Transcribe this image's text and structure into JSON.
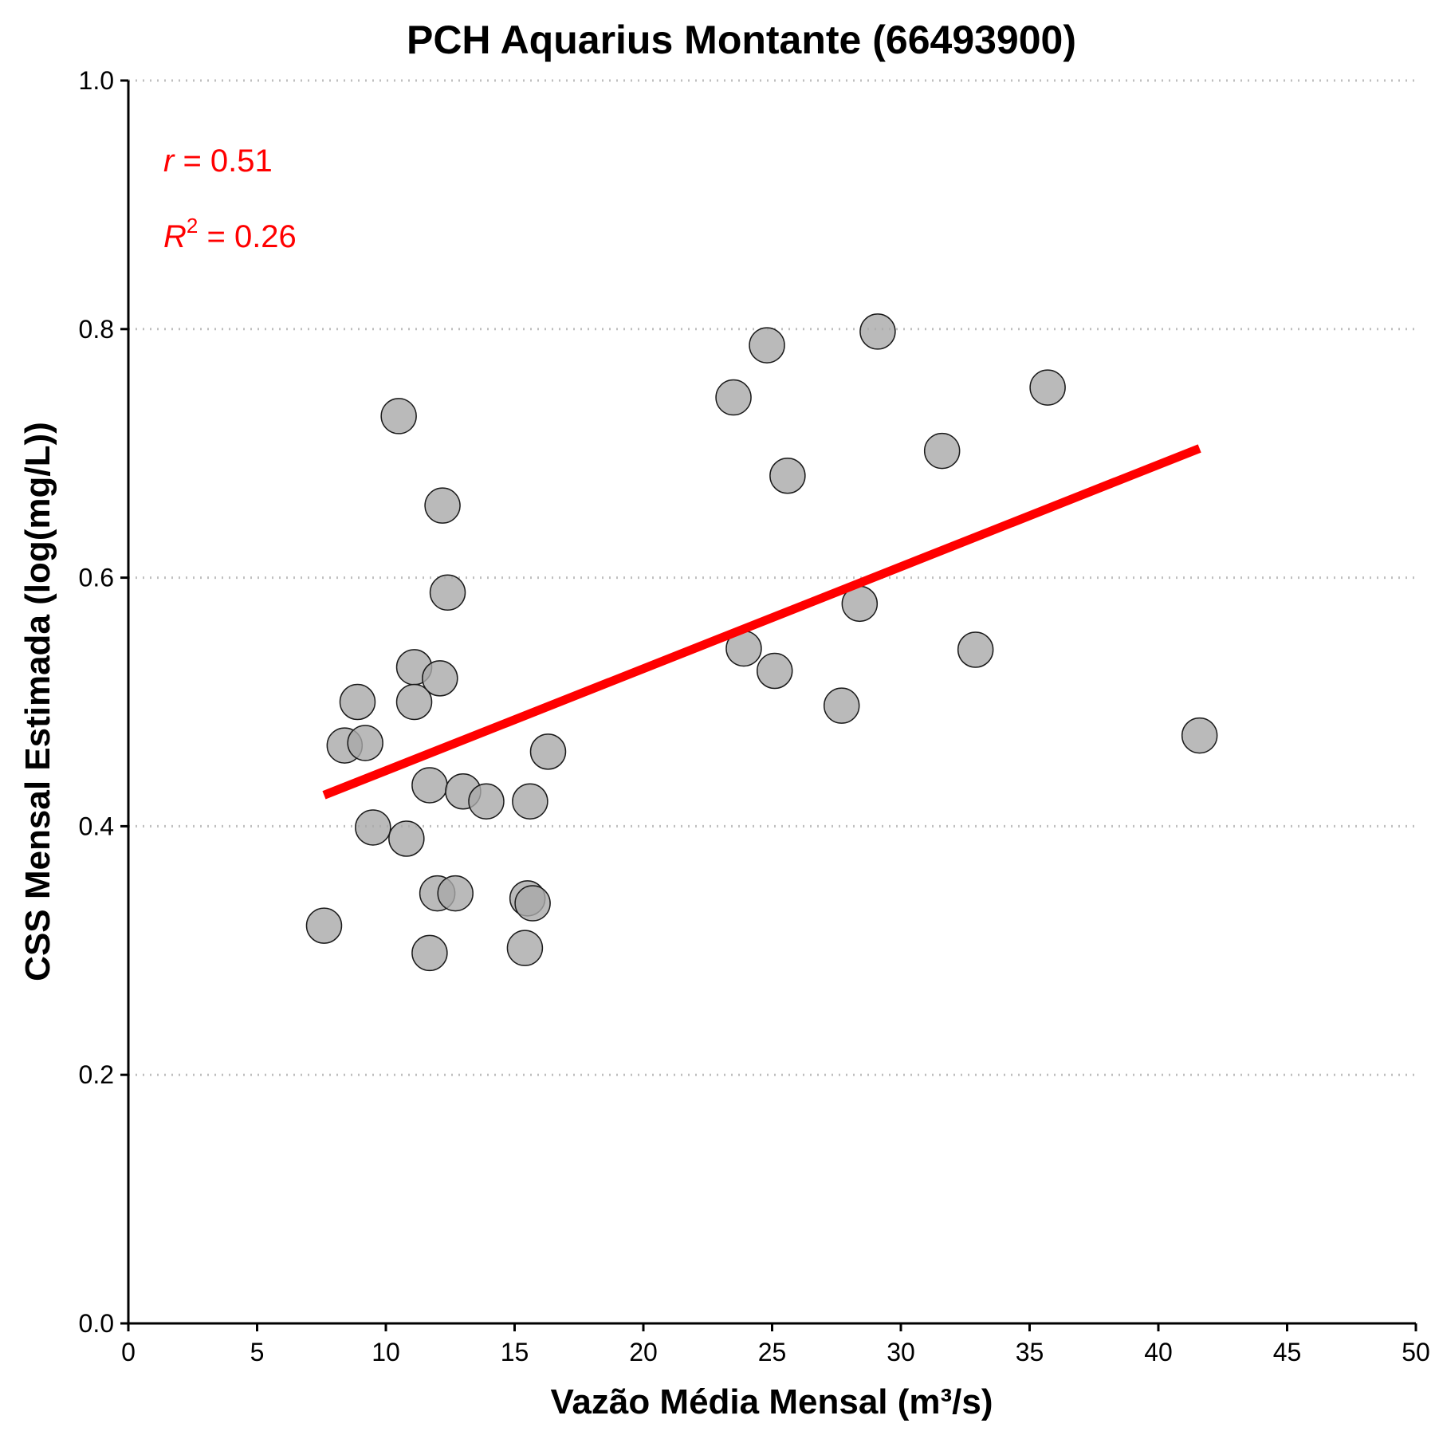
{
  "chart_data": {
    "type": "scatter",
    "title": "PCH Aquarius Montante (66493900)",
    "xlabel": "Vazão Média Mensal (m³/s)",
    "ylabel": "CSS Mensal Estimada (log(mg/L))",
    "xlim": [
      0,
      50
    ],
    "ylim": [
      0,
      1
    ],
    "x_ticks": [
      "0",
      "5",
      "10",
      "15",
      "20",
      "25",
      "30",
      "35",
      "40",
      "45",
      "50"
    ],
    "y_ticks": [
      "0.0",
      "0.2",
      "0.4",
      "0.6",
      "0.8",
      "1.0"
    ],
    "y_grid": "dotted horizontal at major ticks",
    "point_color": "#a9a9a9",
    "line_color": "#ff0000",
    "points": [
      {
        "x": 7.6,
        "y": 0.32
      },
      {
        "x": 8.4,
        "y": 0.465
      },
      {
        "x": 8.9,
        "y": 0.5
      },
      {
        "x": 9.2,
        "y": 0.467
      },
      {
        "x": 9.5,
        "y": 0.399
      },
      {
        "x": 10.5,
        "y": 0.73
      },
      {
        "x": 10.8,
        "y": 0.39
      },
      {
        "x": 11.1,
        "y": 0.528
      },
      {
        "x": 11.1,
        "y": 0.5
      },
      {
        "x": 11.7,
        "y": 0.433
      },
      {
        "x": 11.7,
        "y": 0.298
      },
      {
        "x": 12.0,
        "y": 0.346
      },
      {
        "x": 12.1,
        "y": 0.519
      },
      {
        "x": 12.2,
        "y": 0.658
      },
      {
        "x": 12.4,
        "y": 0.588
      },
      {
        "x": 12.7,
        "y": 0.346
      },
      {
        "x": 13.0,
        "y": 0.428
      },
      {
        "x": 13.9,
        "y": 0.42
      },
      {
        "x": 15.4,
        "y": 0.302
      },
      {
        "x": 15.5,
        "y": 0.342
      },
      {
        "x": 15.6,
        "y": 0.42
      },
      {
        "x": 15.7,
        "y": 0.338
      },
      {
        "x": 16.3,
        "y": 0.46
      },
      {
        "x": 23.5,
        "y": 0.745
      },
      {
        "x": 23.9,
        "y": 0.543
      },
      {
        "x": 24.8,
        "y": 0.787
      },
      {
        "x": 25.1,
        "y": 0.525
      },
      {
        "x": 25.6,
        "y": 0.682
      },
      {
        "x": 27.7,
        "y": 0.497
      },
      {
        "x": 28.4,
        "y": 0.579
      },
      {
        "x": 29.1,
        "y": 0.798
      },
      {
        "x": 31.6,
        "y": 0.702
      },
      {
        "x": 32.9,
        "y": 0.542
      },
      {
        "x": 35.7,
        "y": 0.753
      },
      {
        "x": 41.6,
        "y": 0.473
      }
    ],
    "regression_line": {
      "x": [
        7.6,
        41.6
      ],
      "y": [
        0.425,
        0.704
      ]
    },
    "annotations": {
      "r_symbol": "r",
      "r_text": " = 0.51",
      "r2_symbol": "R",
      "r2_exponent": "2",
      "r2_text": " = 0.26"
    }
  }
}
